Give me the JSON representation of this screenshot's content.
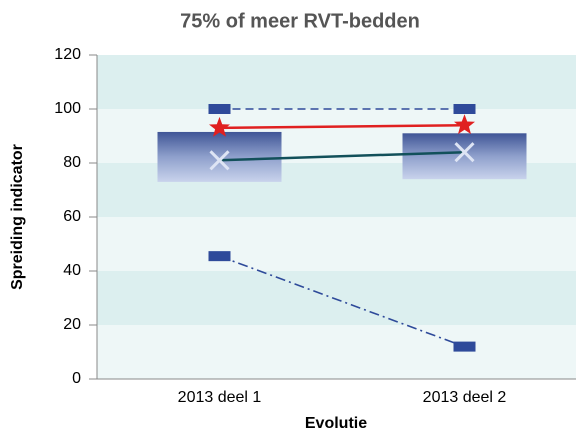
{
  "chart_data": {
    "type": "range",
    "title": "75% of meer RVT-bedden",
    "x_label": "Evolutie",
    "y_label": "Spreiding indicator",
    "categories": [
      "2013 deel 1",
      "2013 deel 2"
    ],
    "ylim": [
      0,
      120
    ],
    "yticks": [
      0,
      20,
      40,
      60,
      80,
      100,
      120
    ],
    "boxes": {
      "low": [
        73,
        74
      ],
      "high": [
        91.5,
        91
      ],
      "color": "#5a6fa8"
    },
    "series": [
      {
        "values": [
          100,
          100
        ],
        "color": "#2e4a9a",
        "marker": "dash",
        "line_style": "dashed"
      },
      {
        "values": [
          93,
          94
        ],
        "color": "#e02020",
        "marker": "star",
        "line_style": "solid"
      },
      {
        "values": [
          81,
          84
        ],
        "color": "#12505a",
        "marker": "x",
        "line_style": "solid"
      },
      {
        "values": [
          45.5,
          12
        ],
        "color": "#2e4a9a",
        "marker": "dash",
        "line_style": "dashdot"
      }
    ]
  }
}
